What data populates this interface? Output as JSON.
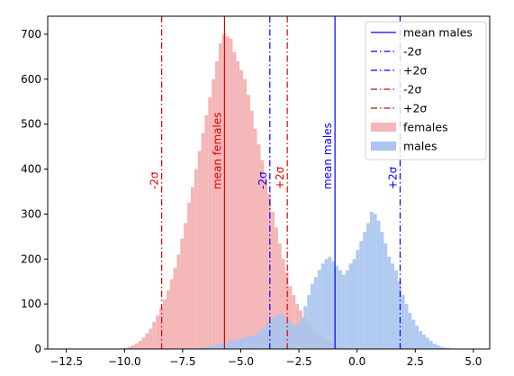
{
  "chart_data": {
    "type": "histogram",
    "title": "",
    "xlabel": "",
    "ylabel": "",
    "xlim": [
      -13.3,
      5.7
    ],
    "ylim": [
      0,
      740
    ],
    "xticks": [
      -12.5,
      -10.0,
      -7.5,
      -5.0,
      -2.5,
      0.0,
      2.5,
      5.0
    ],
    "xtick_labels": [
      "−12.5",
      "−10.0",
      "−7.5",
      "−5.0",
      "−2.5",
      "0.0",
      "2.5",
      "5.0"
    ],
    "yticks": [
      0,
      100,
      200,
      300,
      400,
      500,
      600,
      700
    ],
    "ytick_labels": [
      "0",
      "100",
      "200",
      "300",
      "400",
      "500",
      "600",
      "700"
    ],
    "grid": false,
    "legend_position": "top-right",
    "series": [
      {
        "name": "females",
        "kind": "histogram",
        "color": "#f4b6b7",
        "bin_start": -10.0,
        "bin_width": 0.15,
        "counts": [
          2,
          5,
          8,
          12,
          18,
          25,
          35,
          45,
          60,
          75,
          92,
          110,
          130,
          155,
          180,
          210,
          245,
          280,
          325,
          360,
          400,
          440,
          480,
          520,
          560,
          600,
          640,
          680,
          700,
          695,
          690,
          660,
          640,
          620,
          600,
          565,
          530,
          490,
          455,
          420,
          380,
          345,
          305,
          270,
          235,
          200,
          170,
          140,
          120,
          100,
          85,
          70,
          58,
          50,
          42,
          35,
          28,
          22,
          17,
          12,
          8,
          5,
          4,
          3,
          2,
          1
        ]
      },
      {
        "name": "males",
        "kind": "histogram",
        "color": "#a9c5ef",
        "bin_start": -6.8,
        "bin_width": 0.15,
        "counts": [
          2,
          3,
          5,
          7,
          8,
          10,
          12,
          14,
          16,
          18,
          20,
          22,
          25,
          27,
          28,
          30,
          33,
          40,
          48,
          56,
          62,
          70,
          75,
          78,
          74,
          65,
          58,
          52,
          55,
          70,
          95,
          120,
          145,
          160,
          175,
          190,
          200,
          205,
          195,
          185,
          175,
          165,
          175,
          190,
          200,
          220,
          240,
          260,
          280,
          305,
          300,
          285,
          260,
          235,
          205,
          190,
          175,
          150,
          120,
          100,
          80,
          65,
          52,
          40,
          32,
          25,
          18,
          12,
          8,
          5,
          3,
          2,
          1
        ]
      }
    ],
    "vlines": [
      {
        "x": -0.95,
        "color": "#0000ff",
        "style": "solid",
        "label": "mean males"
      },
      {
        "x": -3.75,
        "color": "#0000ff",
        "style": "dashdot",
        "label": "-2σ"
      },
      {
        "x": 1.85,
        "color": "#0000ff",
        "style": "dashdot",
        "label": "+2σ"
      },
      {
        "x": -5.7,
        "color": "#e00000",
        "style": "solid",
        "label": "mean females"
      },
      {
        "x": -8.4,
        "color": "#e00000",
        "style": "dashdot",
        "label": "-2σ"
      },
      {
        "x": -3.0,
        "color": "#e00000",
        "style": "dashdot",
        "label": "+2σ"
      }
    ],
    "legend": [
      {
        "label": "mean males",
        "kind": "line",
        "color": "#0000ff",
        "style": "solid"
      },
      {
        "label": "-2σ",
        "kind": "line",
        "color": "#0000ff",
        "style": "dashdot"
      },
      {
        "label": "+2σ",
        "kind": "line",
        "color": "#0000ff",
        "style": "dashdot"
      },
      {
        "label": "-2σ",
        "kind": "line",
        "color": "#e00000",
        "style": "dashdot"
      },
      {
        "label": "+2σ",
        "kind": "line",
        "color": "#e00000",
        "style": "dashdot"
      },
      {
        "label": "females",
        "kind": "patch",
        "color": "#f4b6b7"
      },
      {
        "label": "males",
        "kind": "patch",
        "color": "#a9c5ef"
      }
    ]
  }
}
